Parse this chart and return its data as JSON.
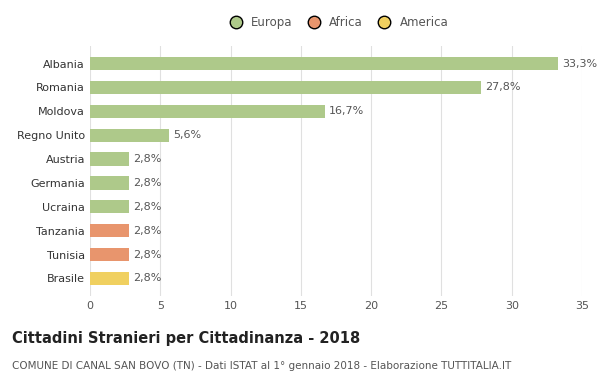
{
  "categories": [
    "Albania",
    "Romania",
    "Moldova",
    "Regno Unito",
    "Austria",
    "Germania",
    "Ucraina",
    "Tanzania",
    "Tunisia",
    "Brasile"
  ],
  "values": [
    33.3,
    27.8,
    16.7,
    5.6,
    2.8,
    2.8,
    2.8,
    2.8,
    2.8,
    2.8
  ],
  "labels": [
    "33,3%",
    "27,8%",
    "16,7%",
    "5,6%",
    "2,8%",
    "2,8%",
    "2,8%",
    "2,8%",
    "2,8%",
    "2,8%"
  ],
  "bar_colors": [
    "#aec98a",
    "#aec98a",
    "#aec98a",
    "#aec98a",
    "#aec98a",
    "#aec98a",
    "#aec98a",
    "#e8956d",
    "#e8956d",
    "#f0d060"
  ],
  "legend": [
    {
      "label": "Europa",
      "color": "#aec98a"
    },
    {
      "label": "Africa",
      "color": "#e8956d"
    },
    {
      "label": "America",
      "color": "#f0d060"
    }
  ],
  "xlim": [
    0,
    35
  ],
  "xticks": [
    0,
    5,
    10,
    15,
    20,
    25,
    30,
    35
  ],
  "title": "Cittadini Stranieri per Cittadinanza - 2018",
  "subtitle": "COMUNE DI CANAL SAN BOVO (TN) - Dati ISTAT al 1° gennaio 2018 - Elaborazione TUTTITALIA.IT",
  "background_color": "#ffffff",
  "grid_color": "#e0e0e0",
  "bar_height": 0.55,
  "label_fontsize": 8,
  "ytick_fontsize": 8,
  "xtick_fontsize": 8,
  "title_fontsize": 10.5,
  "subtitle_fontsize": 7.5,
  "legend_fontsize": 8.5
}
